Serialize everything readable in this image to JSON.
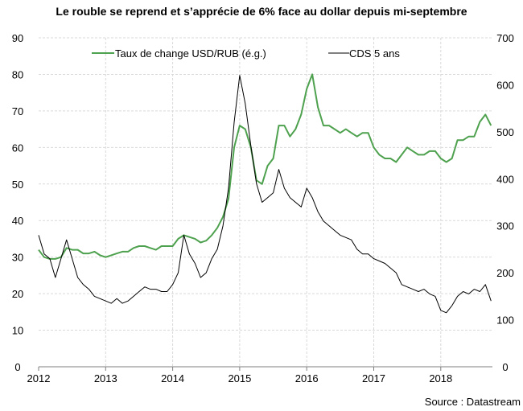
{
  "chart_data": {
    "type": "line",
    "title": "Le rouble se reprend et s’apprécie de 6% face au dollar depuis mi-septembre",
    "source": "Source : Datastream",
    "x_start": 2012,
    "x_step_months": 1,
    "xlim": [
      2012,
      2018.8
    ],
    "x_ticks": [
      "2012",
      "2013",
      "2014",
      "2015",
      "2016",
      "2017",
      "2018"
    ],
    "y_left": {
      "lim": [
        0,
        90
      ],
      "ticks": [
        "0",
        "10",
        "20",
        "30",
        "40",
        "50",
        "60",
        "70",
        "80",
        "90"
      ]
    },
    "y_right": {
      "lim": [
        0,
        700
      ],
      "ticks": [
        "0",
        "100",
        "200",
        "300",
        "400",
        "500",
        "600",
        "700"
      ]
    },
    "grid": true,
    "legend_position": "top-center",
    "series": [
      {
        "name": "Taux de change USD/RUB (é.g.)",
        "axis": "left",
        "color": "#4EA14E",
        "values": [
          32,
          30,
          29.5,
          29.5,
          30,
          32.5,
          32,
          32,
          31,
          31,
          31.5,
          30.5,
          30,
          30.5,
          31,
          31.5,
          31.5,
          32.5,
          33,
          33,
          32.5,
          32,
          33,
          33,
          33,
          35,
          36,
          35.5,
          35,
          34,
          34.5,
          36,
          38,
          41,
          46,
          60,
          66,
          65,
          60,
          51,
          50,
          55,
          57,
          66,
          66,
          63,
          65,
          69,
          76,
          80,
          71,
          66,
          66,
          65,
          64,
          65,
          64,
          63,
          64,
          64,
          60,
          58,
          57,
          57,
          56,
          58,
          60,
          59,
          58,
          58,
          59,
          59,
          57,
          56,
          57,
          62,
          62,
          63,
          63,
          67,
          69,
          66
        ]
      },
      {
        "name": "CDS 5 ans",
        "axis": "right",
        "color": "#000000",
        "values": [
          280,
          240,
          230,
          190,
          230,
          270,
          230,
          190,
          175,
          165,
          150,
          145,
          140,
          135,
          145,
          135,
          140,
          150,
          160,
          170,
          165,
          165,
          160,
          160,
          175,
          200,
          280,
          240,
          220,
          190,
          200,
          230,
          250,
          300,
          380,
          520,
          620,
          560,
          470,
          390,
          350,
          360,
          370,
          420,
          380,
          360,
          350,
          340,
          380,
          360,
          330,
          310,
          300,
          290,
          280,
          275,
          270,
          250,
          240,
          240,
          230,
          225,
          220,
          210,
          200,
          175,
          170,
          165,
          160,
          165,
          155,
          150,
          120,
          115,
          130,
          150,
          160,
          155,
          165,
          160,
          175,
          140
        ]
      }
    ]
  }
}
